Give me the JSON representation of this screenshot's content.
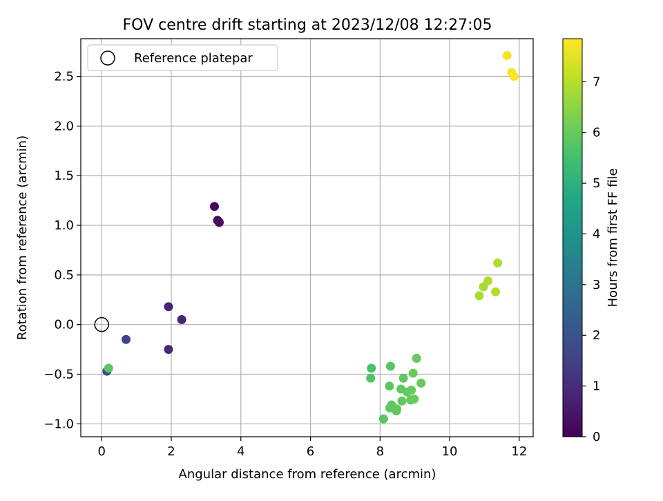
{
  "chart_data": {
    "type": "scatter",
    "title": "FOV centre drift starting at 2023/12/08 12:27:05",
    "xlabel": "Angular distance from reference (arcmin)",
    "ylabel": "Rotation from reference (arcmin)",
    "xlim": [
      -0.6,
      12.4
    ],
    "ylim": [
      -1.13,
      2.88
    ],
    "x_ticks": [
      0,
      2,
      4,
      6,
      8,
      10,
      12
    ],
    "y_ticks": [
      -1.0,
      -0.5,
      0.0,
      0.5,
      1.0,
      1.5,
      2.0,
      2.5
    ],
    "x_tick_labels": [
      "0",
      "2",
      "4",
      "6",
      "8",
      "10",
      "12"
    ],
    "y_tick_labels": [
      "−1.0",
      "−0.5",
      "0.0",
      "0.5",
      "1.0",
      "1.5",
      "2.0",
      "2.5"
    ],
    "grid": true,
    "legend": {
      "placement": "top-left",
      "entries": [
        {
          "label": "Reference platepar",
          "marker": "open-circle"
        }
      ]
    },
    "reference_point": {
      "x": 0,
      "y": 0
    },
    "colorbar": {
      "label": "Hours from first FF file",
      "colormap": "viridis",
      "range": [
        0,
        7.85
      ],
      "ticks": [
        0,
        1,
        2,
        3,
        4,
        5,
        6,
        7
      ],
      "tick_labels": [
        "0",
        "1",
        "2",
        "3",
        "4",
        "5",
        "6",
        "7"
      ]
    },
    "points": [
      {
        "x": 3.24,
        "y": 1.19,
        "c": 0.2
      },
      {
        "x": 3.33,
        "y": 1.05,
        "c": 0.25
      },
      {
        "x": 3.38,
        "y": 1.03,
        "c": 0.3
      },
      {
        "x": 1.92,
        "y": 0.18,
        "c": 0.75
      },
      {
        "x": 2.3,
        "y": 0.05,
        "c": 0.8
      },
      {
        "x": 1.92,
        "y": -0.25,
        "c": 0.9
      },
      {
        "x": 0.7,
        "y": -0.15,
        "c": 1.6
      },
      {
        "x": 0.15,
        "y": -0.47,
        "c": 1.8
      },
      {
        "x": 0.2,
        "y": -0.44,
        "c": 5.8
      },
      {
        "x": 7.75,
        "y": -0.44,
        "c": 5.6
      },
      {
        "x": 7.73,
        "y": -0.54,
        "c": 5.7
      },
      {
        "x": 8.3,
        "y": -0.42,
        "c": 5.8
      },
      {
        "x": 9.05,
        "y": -0.34,
        "c": 6.0
      },
      {
        "x": 8.27,
        "y": -0.62,
        "c": 5.8
      },
      {
        "x": 8.67,
        "y": -0.54,
        "c": 5.9
      },
      {
        "x": 8.95,
        "y": -0.49,
        "c": 6.0
      },
      {
        "x": 9.18,
        "y": -0.59,
        "c": 6.0
      },
      {
        "x": 8.6,
        "y": -0.65,
        "c": 5.9
      },
      {
        "x": 8.78,
        "y": -0.68,
        "c": 5.9
      },
      {
        "x": 8.9,
        "y": -0.66,
        "c": 6.0
      },
      {
        "x": 8.63,
        "y": -0.77,
        "c": 5.9
      },
      {
        "x": 8.88,
        "y": -0.76,
        "c": 6.0
      },
      {
        "x": 8.98,
        "y": -0.75,
        "c": 6.0
      },
      {
        "x": 8.33,
        "y": -0.81,
        "c": 5.9
      },
      {
        "x": 8.28,
        "y": -0.84,
        "c": 5.9
      },
      {
        "x": 8.48,
        "y": -0.85,
        "c": 5.9
      },
      {
        "x": 8.47,
        "y": -0.87,
        "c": 5.9
      },
      {
        "x": 8.1,
        "y": -0.95,
        "c": 5.8
      },
      {
        "x": 11.38,
        "y": 0.62,
        "c": 6.9
      },
      {
        "x": 11.1,
        "y": 0.44,
        "c": 6.9
      },
      {
        "x": 10.97,
        "y": 0.38,
        "c": 6.85
      },
      {
        "x": 11.32,
        "y": 0.33,
        "c": 6.95
      },
      {
        "x": 10.85,
        "y": 0.29,
        "c": 6.85
      },
      {
        "x": 11.65,
        "y": 2.71,
        "c": 7.7
      },
      {
        "x": 11.78,
        "y": 2.54,
        "c": 7.75
      },
      {
        "x": 11.85,
        "y": 2.5,
        "c": 7.8
      }
    ]
  }
}
